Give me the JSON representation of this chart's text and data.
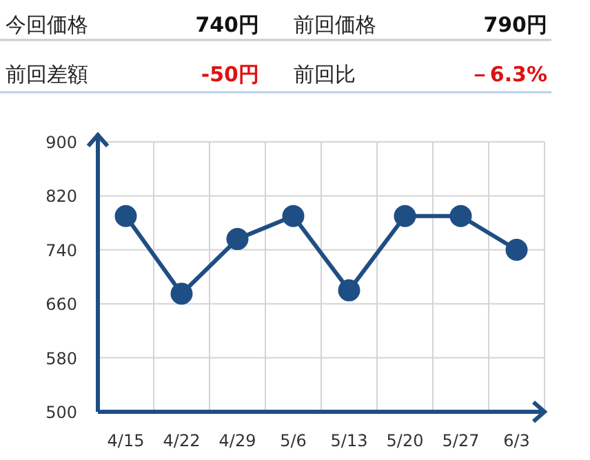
{
  "chart_data": [
    {
      "type": "other",
      "annotations": [
        "今回価格",
        "740円",
        "前回価格",
        "790円",
        "前回差額",
        "-50円",
        "前回比",
        "－6.3%"
      ]
    },
    {
      "type": "line",
      "categories": [
        "4/15",
        "4/22",
        "4/29",
        "5/6",
        "5/13",
        "5/20",
        "5/27",
        "6/3"
      ],
      "values": [
        790,
        675,
        756,
        790,
        680,
        790,
        790,
        740
      ],
      "color": "#1f4e85",
      "marker": "circle",
      "ylim": [
        500,
        900
      ],
      "yticks": [
        500,
        580,
        660,
        740,
        820,
        900
      ],
      "grid": true
    }
  ]
}
